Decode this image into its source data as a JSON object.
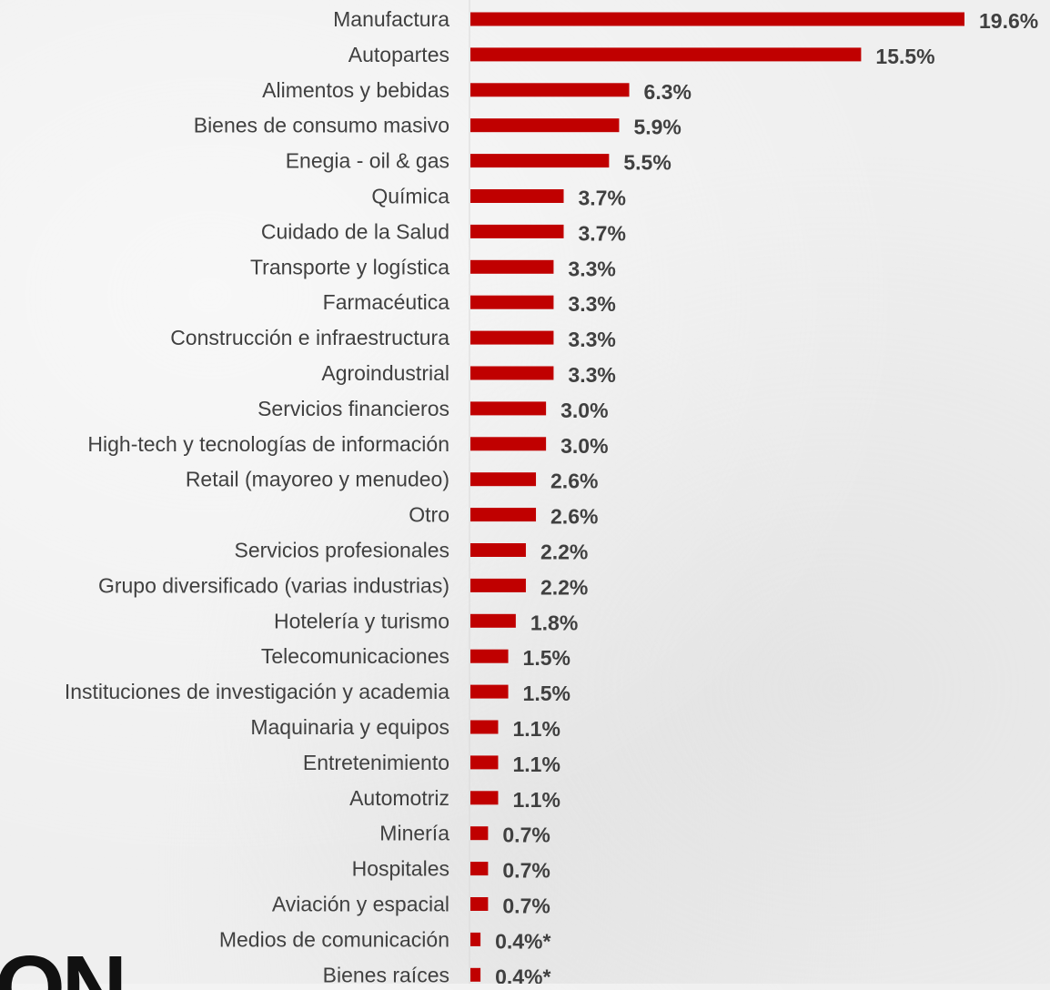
{
  "chart_data": {
    "type": "bar",
    "orientation": "horizontal",
    "categories": [
      "Manufactura",
      "Autopartes",
      "Alimentos y bebidas",
      "Bienes de consumo masivo",
      "Enegia - oil & gas",
      "Química",
      "Cuidado de la Salud",
      "Transporte y logística",
      "Farmacéutica",
      "Construcción e infraestructura",
      "Agroindustrial",
      "Servicios financieros",
      "High-tech y tecnologías de información",
      "Retail (mayoreo y menudeo)",
      "Otro",
      "Servicios profesionales",
      "Grupo diversificado (varias industrias)",
      "Hotelería y turismo",
      "Telecomunicaciones",
      "Instituciones de investigación y academia",
      "Maquinaria y equipos",
      "Entretenimiento",
      "Automotriz",
      "Minería",
      "Hospitales",
      "Aviación y espacial",
      "Medios de comunicación",
      "Bienes raíces"
    ],
    "values": [
      19.6,
      15.5,
      6.3,
      5.9,
      5.5,
      3.7,
      3.7,
      3.3,
      3.3,
      3.3,
      3.3,
      3.0,
      3.0,
      2.6,
      2.6,
      2.2,
      2.2,
      1.8,
      1.5,
      1.5,
      1.1,
      1.1,
      1.1,
      0.7,
      0.7,
      0.7,
      0.4,
      0.4
    ],
    "value_labels": [
      "19.6%",
      "15.5%",
      "6.3%",
      "5.9%",
      "5.5%",
      "3.7%",
      "3.7%",
      "3.3%",
      "3.3%",
      "3.3%",
      "3.3%",
      "3.0%",
      "3.0%",
      "2.6%",
      "2.6%",
      "2.2%",
      "2.2%",
      "1.8%",
      "1.5%",
      "1.5%",
      "1.1%",
      "1.1%",
      "1.1%",
      "0.7%",
      "0.7%",
      "0.7%",
      "0.4%*",
      "0.4%*"
    ],
    "bar_color": "#c00000",
    "label_color": "#404040",
    "grid": false,
    "legend": "none"
  },
  "logo_fragment_text": "ON"
}
